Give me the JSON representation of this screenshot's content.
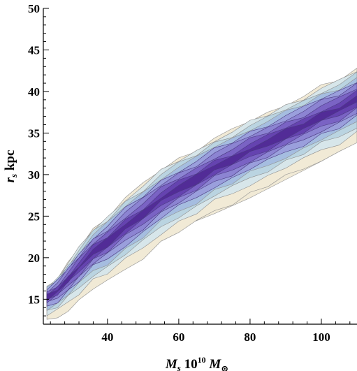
{
  "chart_data": {
    "type": "contour",
    "xlabel": {
      "symbol": "M",
      "sub": "s",
      "factor": "10",
      "exp": "10",
      "unit": "M",
      "unit_sub": "⊙"
    },
    "ylabel": {
      "symbol": "r",
      "sub": "s",
      "unit": "kpc"
    },
    "xlim": [
      22,
      110
    ],
    "ylim": [
      12,
      50
    ],
    "xticks": [
      40,
      60,
      80,
      100
    ],
    "yticks": [
      15,
      20,
      25,
      30,
      35,
      40,
      45,
      50
    ],
    "grid": false,
    "legend": "none",
    "colors": [
      "#f1ead6",
      "#d7e6ea",
      "#bad4e1",
      "#a5bde0",
      "#9a9fdc",
      "#8c84d2",
      "#7a63c4",
      "#6543b0",
      "#522c97"
    ],
    "levels": [
      {
        "level": 0,
        "half_width": 4.6,
        "offset": -0.4
      },
      {
        "level": 1,
        "half_width": 3.9,
        "offset": 0.1
      },
      {
        "level": 2,
        "half_width": 3.3,
        "offset": 0.3
      },
      {
        "level": 3,
        "half_width": 2.8,
        "offset": 0.4
      },
      {
        "level": 4,
        "half_width": 2.3,
        "offset": 0.5
      },
      {
        "level": 5,
        "half_width": 1.8,
        "offset": 0.6
      },
      {
        "level": 6,
        "half_width": 1.3,
        "offset": 0.6
      },
      {
        "level": 7,
        "half_width": 0.8,
        "offset": 0.6
      },
      {
        "level": 8,
        "half_width": 0.4,
        "offset": 0.6
      }
    ],
    "ridge": [
      {
        "x": 23,
        "y": 14.6
      },
      {
        "x": 26,
        "y": 15.4
      },
      {
        "x": 29,
        "y": 16.8
      },
      {
        "x": 32,
        "y": 18.2
      },
      {
        "x": 36,
        "y": 20.1
      },
      {
        "x": 40,
        "y": 21.2
      },
      {
        "x": 45,
        "y": 23.1
      },
      {
        "x": 50,
        "y": 24.6
      },
      {
        "x": 55,
        "y": 26.4
      },
      {
        "x": 60,
        "y": 27.7
      },
      {
        "x": 65,
        "y": 28.8
      },
      {
        "x": 70,
        "y": 30.2
      },
      {
        "x": 75,
        "y": 31.1
      },
      {
        "x": 80,
        "y": 32.3
      },
      {
        "x": 85,
        "y": 33.2
      },
      {
        "x": 90,
        "y": 34.3
      },
      {
        "x": 95,
        "y": 35.2
      },
      {
        "x": 100,
        "y": 36.4
      },
      {
        "x": 105,
        "y": 37.2
      },
      {
        "x": 110,
        "y": 38.5
      }
    ],
    "lower_tail": [
      {
        "x": 40,
        "y": 19.6
      },
      {
        "x": 50,
        "y": 21.8
      },
      {
        "x": 60,
        "y": 23.6
      },
      {
        "x": 70,
        "y": 25.3
      },
      {
        "x": 80,
        "y": 27.2
      },
      {
        "x": 90,
        "y": 29.4
      },
      {
        "x": 100,
        "y": 31.6
      },
      {
        "x": 110,
        "y": 34.0
      }
    ]
  }
}
